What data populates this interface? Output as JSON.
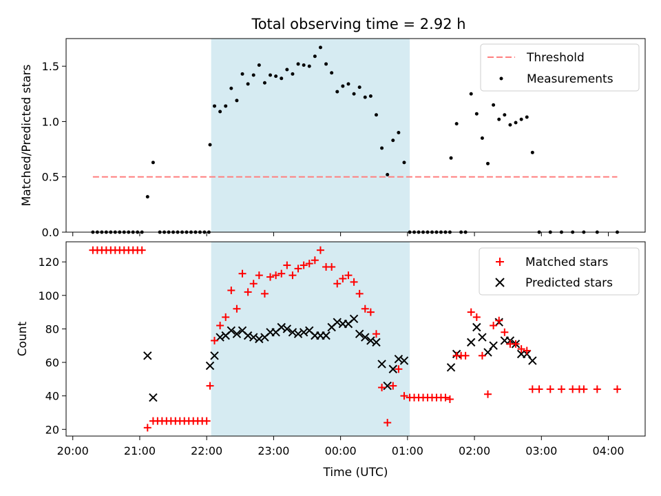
{
  "title": "Total observing time = 2.92 h",
  "x_axis": {
    "label": "Time (UTC)",
    "ticks": [
      "20:00",
      "21:00",
      "22:00",
      "23:00",
      "00:00",
      "01:00",
      "02:00",
      "03:00",
      "04:00"
    ]
  },
  "colors": {
    "threshold": "#ff7f7f",
    "matched": "#ff0000",
    "predicted": "#000000",
    "shade": "#add8e6"
  },
  "chart_data": [
    {
      "type": "scatter",
      "ylabel": "Matched/Predicted stars",
      "ylim": [
        0,
        1.75
      ],
      "yticks": [
        "0.0",
        "0.5",
        "1.0",
        "1.5"
      ],
      "x_range_hours": [
        19.9,
        28.55
      ],
      "shaded_span": [
        "22:04",
        "01:02"
      ],
      "legend": {
        "placement": "top-right",
        "threshold_label": "Threshold",
        "measurements_label": "Measurements"
      },
      "threshold": {
        "y": 0.5,
        "x_from": "20:18",
        "x_to": "04:08"
      },
      "series": [
        {
          "name": "Measurements",
          "points": [
            [
              "20:18",
              0
            ],
            [
              "20:22",
              0
            ],
            [
              "20:26",
              0
            ],
            [
              "20:30",
              0
            ],
            [
              "20:34",
              0
            ],
            [
              "20:38",
              0
            ],
            [
              "20:42",
              0
            ],
            [
              "20:46",
              0
            ],
            [
              "20:50",
              0
            ],
            [
              "20:54",
              0
            ],
            [
              "20:58",
              0
            ],
            [
              "21:02",
              0
            ],
            [
              "21:07",
              0.32
            ],
            [
              "21:12",
              0.63
            ],
            [
              "21:18",
              0
            ],
            [
              "21:22",
              0
            ],
            [
              "21:26",
              0
            ],
            [
              "21:30",
              0
            ],
            [
              "21:34",
              0
            ],
            [
              "21:38",
              0
            ],
            [
              "21:42",
              0
            ],
            [
              "21:46",
              0
            ],
            [
              "21:50",
              0
            ],
            [
              "21:54",
              0
            ],
            [
              "21:58",
              0
            ],
            [
              "22:02",
              0
            ],
            [
              "22:03",
              0.79
            ],
            [
              "22:07",
              1.14
            ],
            [
              "22:12",
              1.09
            ],
            [
              "22:17",
              1.14
            ],
            [
              "22:22",
              1.3
            ],
            [
              "22:27",
              1.19
            ],
            [
              "22:32",
              1.43
            ],
            [
              "22:37",
              1.34
            ],
            [
              "22:42",
              1.42
            ],
            [
              "22:47",
              1.51
            ],
            [
              "22:52",
              1.35
            ],
            [
              "22:57",
              1.42
            ],
            [
              "23:02",
              1.41
            ],
            [
              "23:07",
              1.39
            ],
            [
              "23:12",
              1.47
            ],
            [
              "23:17",
              1.43
            ],
            [
              "23:22",
              1.52
            ],
            [
              "23:27",
              1.51
            ],
            [
              "23:32",
              1.5
            ],
            [
              "23:37",
              1.59
            ],
            [
              "23:42",
              1.67
            ],
            [
              "23:47",
              1.52
            ],
            [
              "23:52",
              1.44
            ],
            [
              "23:57",
              1.27
            ],
            [
              "00:02",
              1.32
            ],
            [
              "00:07",
              1.34
            ],
            [
              "00:12",
              1.25
            ],
            [
              "00:17",
              1.31
            ],
            [
              "00:22",
              1.22
            ],
            [
              "00:27",
              1.23
            ],
            [
              "00:32",
              1.06
            ],
            [
              "00:37",
              0.76
            ],
            [
              "00:42",
              0.52
            ],
            [
              "00:47",
              0.83
            ],
            [
              "00:52",
              0.9
            ],
            [
              "00:57",
              0.63
            ],
            [
              "01:02",
              0
            ],
            [
              "01:06",
              0
            ],
            [
              "01:10",
              0
            ],
            [
              "01:14",
              0
            ],
            [
              "01:18",
              0
            ],
            [
              "01:22",
              0
            ],
            [
              "01:26",
              0
            ],
            [
              "01:30",
              0
            ],
            [
              "01:34",
              0
            ],
            [
              "01:38",
              0
            ],
            [
              "01:39",
              0.67
            ],
            [
              "01:44",
              0.98
            ],
            [
              "01:48",
              0
            ],
            [
              "01:52",
              0
            ],
            [
              "01:57",
              1.25
            ],
            [
              "02:02",
              1.07
            ],
            [
              "02:07",
              0.85
            ],
            [
              "02:12",
              0.62
            ],
            [
              "02:17",
              1.15
            ],
            [
              "02:22",
              1.02
            ],
            [
              "02:27",
              1.06
            ],
            [
              "02:32",
              0.97
            ],
            [
              "02:37",
              0.99
            ],
            [
              "02:42",
              1.02
            ],
            [
              "02:47",
              1.04
            ],
            [
              "02:52",
              0.72
            ],
            [
              "02:58",
              0
            ],
            [
              "03:08",
              0
            ],
            [
              "03:18",
              0
            ],
            [
              "03:28",
              0
            ],
            [
              "03:38",
              0
            ],
            [
              "03:50",
              0
            ],
            [
              "04:08",
              0
            ]
          ]
        }
      ]
    },
    {
      "type": "scatter",
      "ylabel": "Count",
      "xlabel": "Time (UTC)",
      "ylim": [
        16,
        132
      ],
      "yticks": [
        "20",
        "40",
        "60",
        "80",
        "100",
        "120"
      ],
      "x_range_hours": [
        19.9,
        28.55
      ],
      "shaded_span": [
        "22:04",
        "01:02"
      ],
      "legend": {
        "placement": "top-right",
        "matched_label": "Matched stars",
        "predicted_label": "Predicted stars"
      },
      "series": [
        {
          "name": "Matched stars",
          "points": [
            [
              "20:18",
              127
            ],
            [
              "20:22",
              127
            ],
            [
              "20:26",
              127
            ],
            [
              "20:30",
              127
            ],
            [
              "20:34",
              127
            ],
            [
              "20:38",
              127
            ],
            [
              "20:42",
              127
            ],
            [
              "20:46",
              127
            ],
            [
              "20:50",
              127
            ],
            [
              "20:54",
              127
            ],
            [
              "20:58",
              127
            ],
            [
              "21:02",
              127
            ],
            [
              "21:07",
              21
            ],
            [
              "21:12",
              25
            ],
            [
              "21:16",
              25
            ],
            [
              "21:20",
              25
            ],
            [
              "21:24",
              25
            ],
            [
              "21:28",
              25
            ],
            [
              "21:32",
              25
            ],
            [
              "21:36",
              25
            ],
            [
              "21:40",
              25
            ],
            [
              "21:44",
              25
            ],
            [
              "21:48",
              25
            ],
            [
              "21:52",
              25
            ],
            [
              "21:56",
              25
            ],
            [
              "22:00",
              25
            ],
            [
              "22:03",
              46
            ],
            [
              "22:07",
              73
            ],
            [
              "22:12",
              82
            ],
            [
              "22:17",
              87
            ],
            [
              "22:22",
              103
            ],
            [
              "22:27",
              92
            ],
            [
              "22:32",
              113
            ],
            [
              "22:37",
              102
            ],
            [
              "22:42",
              107
            ],
            [
              "22:47",
              112
            ],
            [
              "22:52",
              101
            ],
            [
              "22:57",
              111
            ],
            [
              "23:02",
              112
            ],
            [
              "23:07",
              113
            ],
            [
              "23:12",
              118
            ],
            [
              "23:17",
              112
            ],
            [
              "23:22",
              116
            ],
            [
              "23:27",
              118
            ],
            [
              "23:32",
              119
            ],
            [
              "23:37",
              121
            ],
            [
              "23:42",
              127
            ],
            [
              "23:47",
              117
            ],
            [
              "23:52",
              117
            ],
            [
              "23:57",
              107
            ],
            [
              "00:02",
              110
            ],
            [
              "00:07",
              112
            ],
            [
              "00:12",
              108
            ],
            [
              "00:17",
              101
            ],
            [
              "00:22",
              92
            ],
            [
              "00:27",
              90
            ],
            [
              "00:32",
              77
            ],
            [
              "00:37",
              45
            ],
            [
              "00:42",
              24
            ],
            [
              "00:47",
              46
            ],
            [
              "00:52",
              56
            ],
            [
              "00:57",
              40
            ],
            [
              "01:02",
              39
            ],
            [
              "01:06",
              39
            ],
            [
              "01:10",
              39
            ],
            [
              "01:14",
              39
            ],
            [
              "01:18",
              39
            ],
            [
              "01:22",
              39
            ],
            [
              "01:26",
              39
            ],
            [
              "01:30",
              39
            ],
            [
              "01:34",
              39
            ],
            [
              "01:38",
              38
            ],
            [
              "01:44",
              64
            ],
            [
              "01:48",
              64
            ],
            [
              "01:52",
              64
            ],
            [
              "01:57",
              90
            ],
            [
              "02:02",
              87
            ],
            [
              "02:07",
              64
            ],
            [
              "02:12",
              41
            ],
            [
              "02:17",
              82
            ],
            [
              "02:22",
              85
            ],
            [
              "02:27",
              78
            ],
            [
              "02:32",
              71
            ],
            [
              "02:37",
              71
            ],
            [
              "02:42",
              68
            ],
            [
              "02:47",
              67
            ],
            [
              "02:52",
              44
            ],
            [
              "02:58",
              44
            ],
            [
              "03:08",
              44
            ],
            [
              "03:18",
              44
            ],
            [
              "03:28",
              44
            ],
            [
              "03:34",
              44
            ],
            [
              "03:38",
              44
            ],
            [
              "03:50",
              44
            ],
            [
              "04:08",
              44
            ]
          ]
        },
        {
          "name": "Predicted stars",
          "points": [
            [
              "21:07",
              64
            ],
            [
              "21:12",
              39
            ],
            [
              "22:03",
              58
            ],
            [
              "22:07",
              64
            ],
            [
              "22:12",
              75
            ],
            [
              "22:17",
              76
            ],
            [
              "22:22",
              79
            ],
            [
              "22:27",
              77
            ],
            [
              "22:32",
              79
            ],
            [
              "22:37",
              76
            ],
            [
              "22:42",
              75
            ],
            [
              "22:47",
              74
            ],
            [
              "22:52",
              75
            ],
            [
              "22:57",
              78
            ],
            [
              "23:02",
              78
            ],
            [
              "23:07",
              81
            ],
            [
              "23:12",
              80
            ],
            [
              "23:17",
              78
            ],
            [
              "23:22",
              77
            ],
            [
              "23:27",
              78
            ],
            [
              "23:32",
              79
            ],
            [
              "23:37",
              76
            ],
            [
              "23:42",
              76
            ],
            [
              "23:47",
              76
            ],
            [
              "23:52",
              81
            ],
            [
              "23:57",
              84
            ],
            [
              "00:02",
              83
            ],
            [
              "00:07",
              83
            ],
            [
              "00:12",
              86
            ],
            [
              "00:17",
              77
            ],
            [
              "00:22",
              75
            ],
            [
              "00:27",
              73
            ],
            [
              "00:32",
              72
            ],
            [
              "00:37",
              59
            ],
            [
              "00:42",
              46
            ],
            [
              "00:47",
              56
            ],
            [
              "00:52",
              62
            ],
            [
              "00:57",
              61
            ],
            [
              "01:39",
              57
            ],
            [
              "01:44",
              65
            ],
            [
              "01:57",
              72
            ],
            [
              "02:02",
              81
            ],
            [
              "02:07",
              75
            ],
            [
              "02:12",
              66
            ],
            [
              "02:17",
              70
            ],
            [
              "02:22",
              84
            ],
            [
              "02:27",
              73
            ],
            [
              "02:32",
              73
            ],
            [
              "02:37",
              71
            ],
            [
              "02:42",
              65
            ],
            [
              "02:47",
              65
            ],
            [
              "02:52",
              61
            ]
          ]
        }
      ]
    }
  ]
}
